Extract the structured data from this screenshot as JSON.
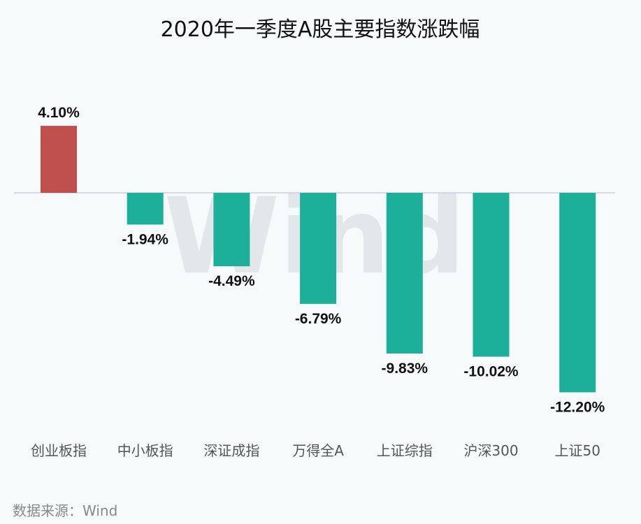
{
  "chart_data": {
    "type": "bar",
    "title": "2020年一季度A股主要指数涨跌幅",
    "categories": [
      "创业板指",
      "中小板指",
      "深证成指",
      "万得全A",
      "上证综指",
      "沪深300",
      "上证50"
    ],
    "values": [
      4.1,
      -1.94,
      -4.49,
      -6.79,
      -9.83,
      -10.02,
      -12.2
    ],
    "value_labels": [
      "4.10%",
      "-1.94%",
      "-4.49%",
      "-6.79%",
      "-9.83%",
      "-10.02%",
      "-12.20%"
    ],
    "unit": "%",
    "ylim": [
      -12.2,
      4.1
    ],
    "grid": false,
    "colors": {
      "positive": "#c0504d",
      "negative": "#1cb09a",
      "baseline": "#c8cce8"
    }
  },
  "source_note": "数据来源：Wind",
  "watermark": "Wind"
}
